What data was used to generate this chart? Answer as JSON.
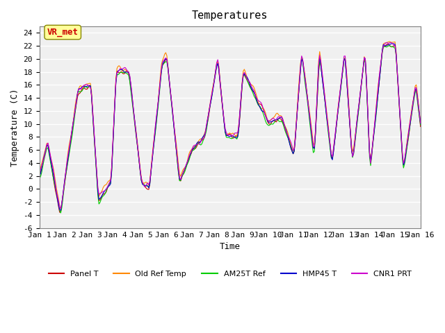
{
  "title": "Temperatures",
  "xlabel": "Time",
  "ylabel": "Temperature (C)",
  "ylim": [
    -6,
    25
  ],
  "yticks": [
    -6,
    -4,
    -2,
    0,
    2,
    4,
    6,
    8,
    10,
    12,
    14,
    16,
    18,
    20,
    22,
    24
  ],
  "xlim": [
    0,
    15
  ],
  "xtick_labels": [
    "Jan 1",
    "Jan 2",
    "Jan 3",
    "Jan 4",
    "Jan 5",
    "Jan 6",
    "Jan 7",
    "Jan 8",
    "Jan 9",
    "Jan 10",
    "Jan 11",
    "Jan 12",
    "Jan 13",
    "Jan 14",
    "Jan 15",
    "Jan 16"
  ],
  "series_colors": {
    "Panel T": "#cc0000",
    "Old Ref Temp": "#ff8800",
    "AM25T Ref": "#00cc00",
    "HMP45 T": "#0000cc",
    "CNR1 PRT": "#cc00cc"
  },
  "annotation_text": "VR_met",
  "annotation_color": "#cc0000",
  "annotation_bg": "#ffff99",
  "bg_color": "#e8e8e8",
  "plot_bg": "#f0f0f0",
  "grid_color": "#ffffff",
  "n_points": 360,
  "font_family": "monospace"
}
